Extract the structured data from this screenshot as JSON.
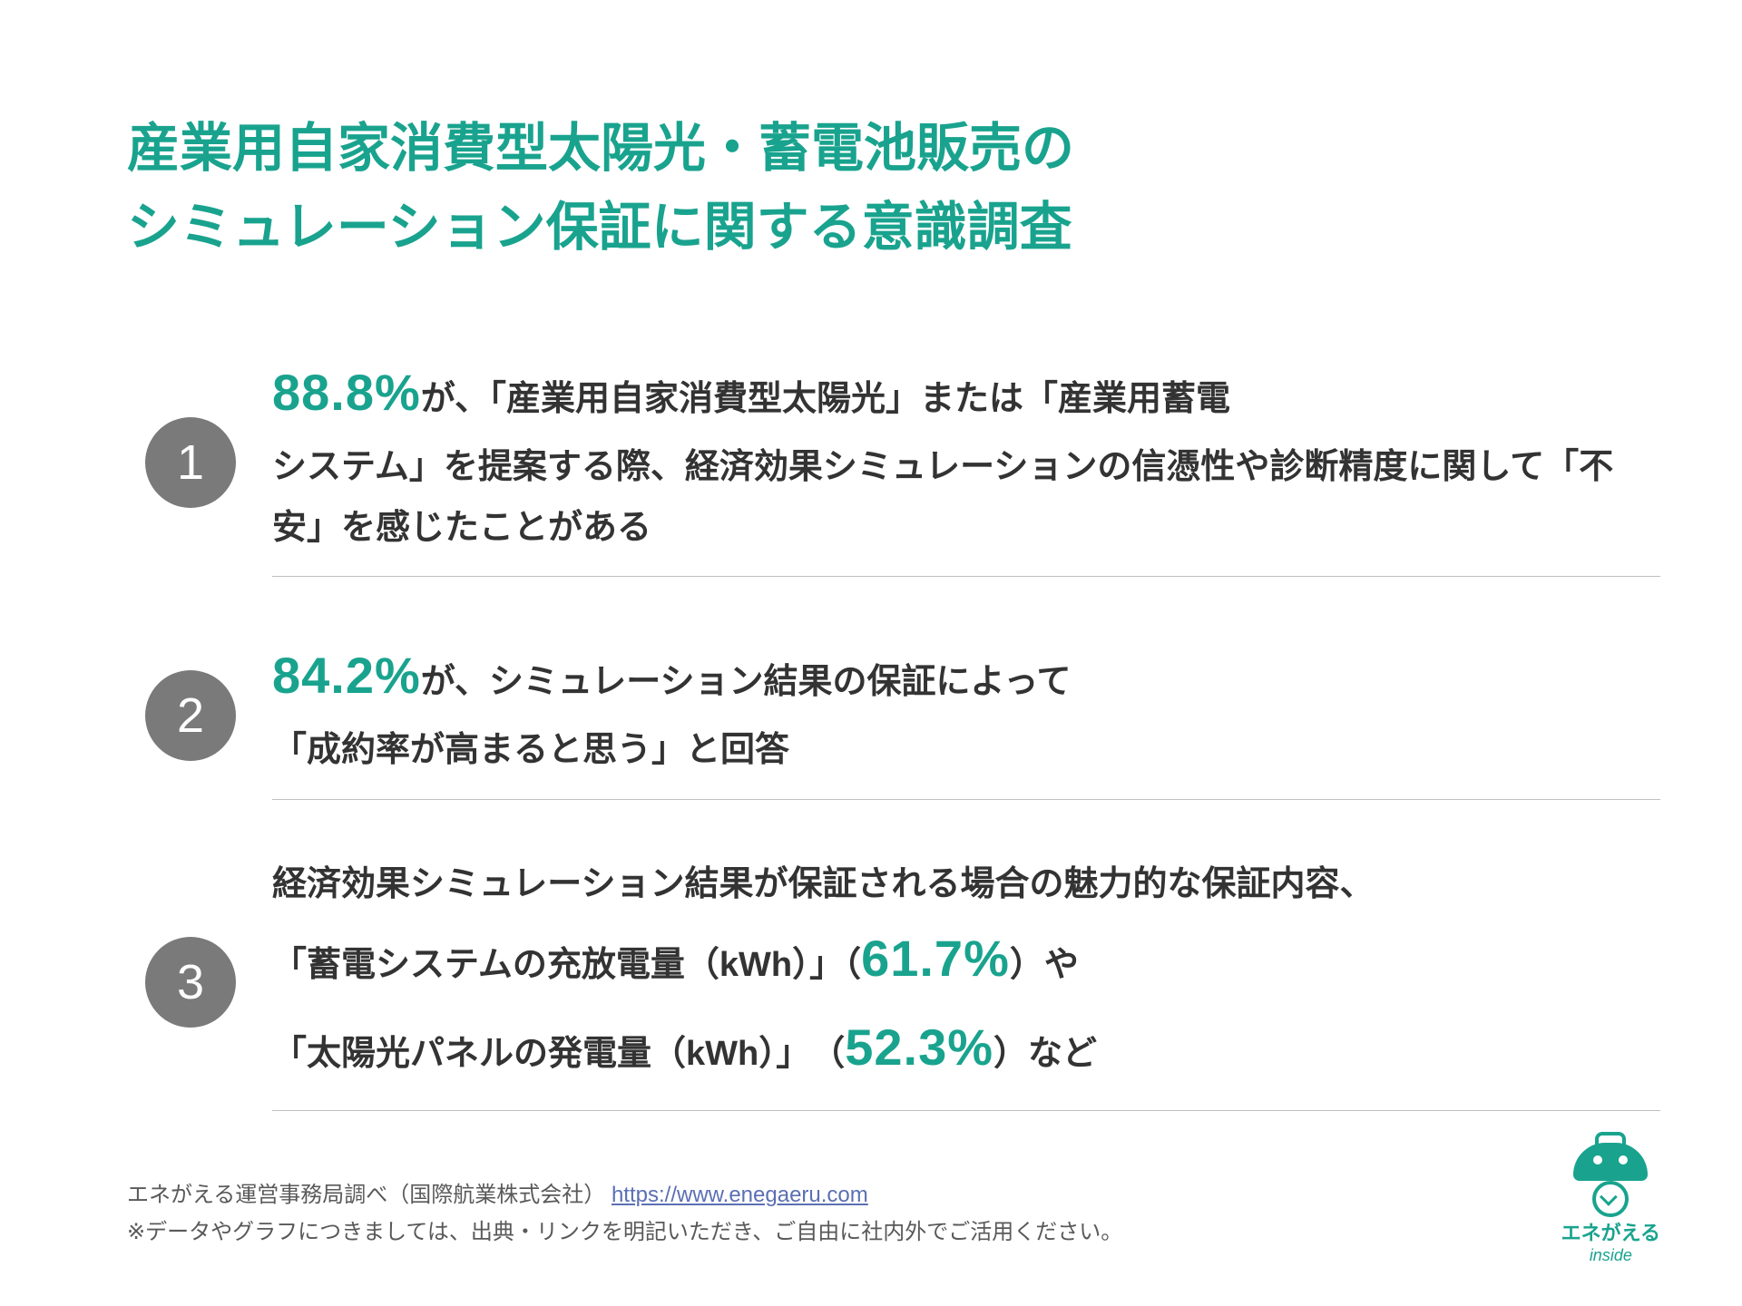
{
  "colors": {
    "accent": "#19a38e",
    "text": "#333333",
    "badge_bg": "#7a7a7a",
    "divider": "#c0c0c0",
    "link": "#5b6fb3"
  },
  "title_lines": [
    "産業用自家消費型太陽光・蓄電池販売の",
    "シミュレーション保証に関する意識調査"
  ],
  "points": [
    {
      "num": "1",
      "pct": "88.8%",
      "after_pct": "が、「産業用自家消費型太陽光」または「産業用蓄電",
      "rest": "システム」を提案する際、経済効果シミュレーションの信憑性や診断精度に関して「不安」を感じたことがある"
    },
    {
      "num": "2",
      "pct": "84.2%",
      "after_pct": "が、シミュレーション結果の保証によって",
      "rest": "「成約率が高まると思う」と回答"
    },
    {
      "num": "3",
      "line1": "経済効果シミュレーション結果が保証される場合の魅力的な保証内容、",
      "l2_a": "「蓄電システムの充放電量（kWh）」（",
      "l2_pct": "61.7%",
      "l2_b": "）や",
      "l3_a": "「太陽光パネルの発電量（kWh）」　（",
      "l3_pct": "52.3%",
      "l3_b": "）など"
    }
  ],
  "footer": {
    "prefix": "エネがえる運営事務局調べ（国際航業株式会社） ",
    "link_text": "https://www.enegaeru.com",
    "note": "※データやグラフにつきましては、出典・リンクを明記いただき、ご自由に社内外でご活用ください。"
  },
  "brand": {
    "name": "エネがえる",
    "sub": "inside"
  }
}
